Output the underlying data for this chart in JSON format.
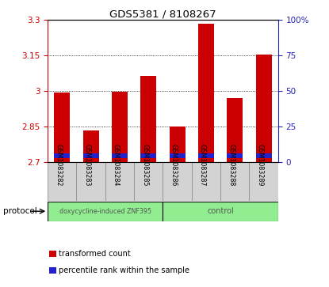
{
  "title": "GDS5381 / 8108267",
  "samples": [
    "GSM1083282",
    "GSM1083283",
    "GSM1083284",
    "GSM1083285",
    "GSM1083286",
    "GSM1083287",
    "GSM1083288",
    "GSM1083289"
  ],
  "red_values": [
    2.995,
    2.835,
    2.997,
    3.065,
    2.85,
    3.285,
    2.97,
    3.155
  ],
  "blue_bottom": [
    2.718,
    2.718,
    2.718,
    2.718,
    2.718,
    2.718,
    2.718,
    2.718
  ],
  "blue_height": [
    0.018,
    0.018,
    0.018,
    0.018,
    0.018,
    0.018,
    0.018,
    0.018
  ],
  "ymin": 2.7,
  "ymax": 3.3,
  "yticks": [
    2.7,
    2.85,
    3.0,
    3.15,
    3.3
  ],
  "ytick_labels": [
    "2.7",
    "2.85",
    "3",
    "3.15",
    "3.3"
  ],
  "right_yticks": [
    0,
    25,
    50,
    75,
    100
  ],
  "right_ytick_labels": [
    "0",
    "25",
    "50",
    "75",
    "100%"
  ],
  "bar_color": "#cc0000",
  "blue_color": "#2222cc",
  "bg_color": "#ffffff",
  "left_tick_color": "#cc0000",
  "right_tick_color": "#2222bb",
  "bar_width": 0.55,
  "legend_items": [
    {
      "color": "#cc0000",
      "label": "transformed count"
    },
    {
      "color": "#2222cc",
      "label": "percentile rank within the sample"
    }
  ],
  "group1_label": "doxycycline-induced ZNF395",
  "group2_label": "control",
  "group_color": "#90ee90",
  "protocol_label": "protocol"
}
